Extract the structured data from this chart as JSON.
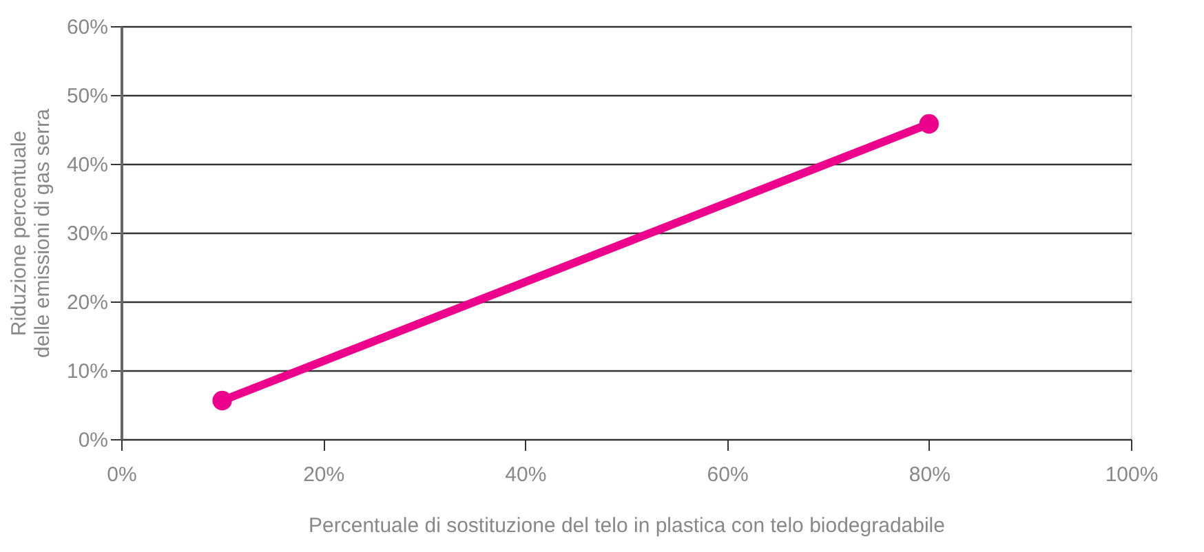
{
  "chart_data": {
    "type": "line",
    "xlabel": "Percentuale di sostituzione del telo in plastica con telo biodegradabile",
    "ylabel": "Riduzione percentuale\ndelle emissioni di gas serra",
    "x": [
      10,
      80
    ],
    "series": [
      {
        "color": "#ec008c",
        "values": [
          5.6,
          45.8
        ]
      }
    ],
    "xlim": [
      0,
      100
    ],
    "xticks": [
      {
        "value": 0,
        "label": "0%"
      },
      {
        "value": 20,
        "label": "20%"
      },
      {
        "value": 40,
        "label": "40%"
      },
      {
        "value": 60,
        "label": "60%"
      },
      {
        "value": 80,
        "label": "80%"
      },
      {
        "value": 100,
        "label": "100%"
      }
    ],
    "ylim": [
      0,
      60
    ],
    "yticks": [
      {
        "value": 0,
        "label": "0%"
      },
      {
        "value": 10,
        "label": "10%"
      },
      {
        "value": 20,
        "label": "20%"
      },
      {
        "value": 30,
        "label": "30%"
      },
      {
        "value": 40,
        "label": "40%"
      },
      {
        "value": 50,
        "label": "50%"
      },
      {
        "value": 60,
        "label": "60%"
      }
    ],
    "grid": "y",
    "marker": "circle",
    "line_style": "solid"
  }
}
